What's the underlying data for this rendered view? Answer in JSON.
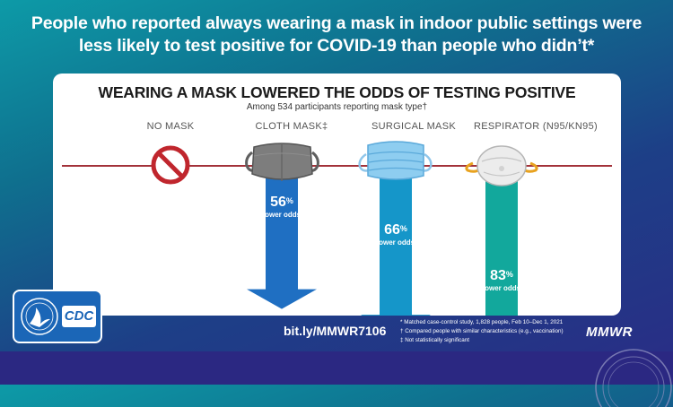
{
  "headline": {
    "line1": "People who reported always wearing a mask in indoor public settings were",
    "line2": "less likely to test positive for COVID-19 than people who didn’t*"
  },
  "card": {
    "title": "WEARING A MASK LOWERED THE ODDS OF TESTING POSITIVE",
    "subtitle": "Among 534 participants reporting mask type†"
  },
  "columns": [
    {
      "label": "NO MASK",
      "icon": "no-symbol-icon"
    },
    {
      "label": "CLOTH MASK‡",
      "icon": "cloth-mask-icon",
      "percent": "56",
      "odds_label": "lower odds",
      "value": 56
    },
    {
      "label": "SURGICAL MASK",
      "icon": "surgical-mask-icon",
      "percent": "66",
      "odds_label": "lower odds",
      "value": 66
    },
    {
      "label": "RESPIRATOR (N95/KN95)",
      "icon": "respirator-icon",
      "percent": "83",
      "odds_label": "lower odds",
      "value": 83
    }
  ],
  "percent_sign": "%",
  "colors": {
    "cloth": "#1f6fc2",
    "surgical": "#1596c9",
    "respirator": "#12a89c",
    "baseline": "#a3323a",
    "no_mask": "#c0262d"
  },
  "footer": {
    "link": "bit.ly/MMWR7106",
    "notes": [
      "* Matched case-control study, 1,828 people, Feb 10–Dec 1, 2021",
      "† Compared people with similar characteristics (e.g., vaccination)",
      "‡ Not statistically significant"
    ],
    "brand": "MMWR",
    "logo_text": "CDC"
  }
}
